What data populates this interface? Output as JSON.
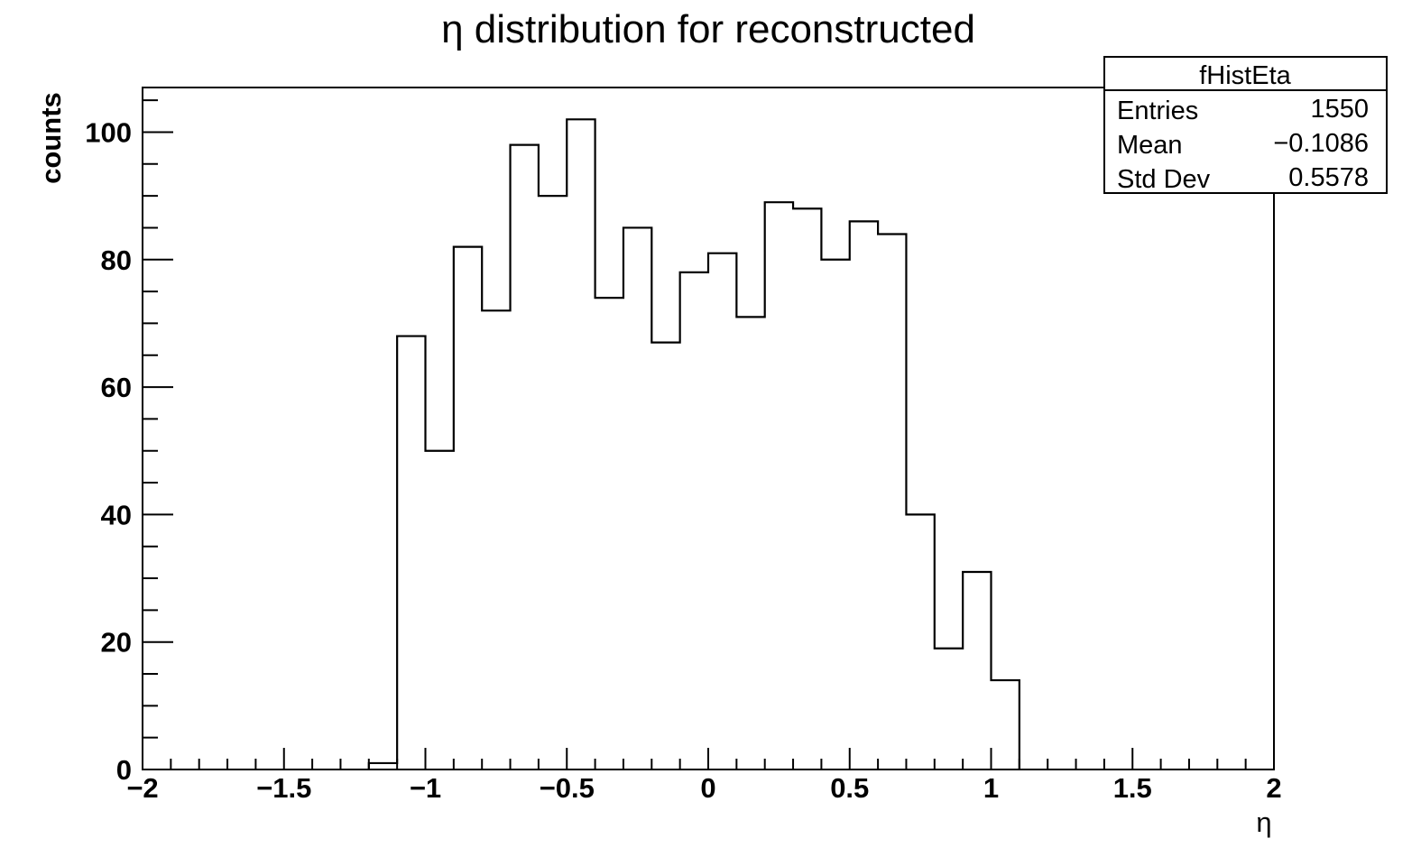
{
  "chart_data": {
    "type": "bar",
    "title": "η distribution for reconstructed",
    "xlabel": "η",
    "ylabel": "counts",
    "xlim": [
      -2,
      2
    ],
    "ylim": [
      0,
      107
    ],
    "bin_width": 0.1,
    "bin_edges_start": [
      -1.2,
      -1.1,
      -1.0,
      -0.9,
      -0.8,
      -0.7,
      -0.6,
      -0.5,
      -0.4,
      -0.3,
      -0.2,
      -0.1,
      0.0,
      0.1,
      0.2,
      0.3,
      0.4,
      0.5,
      0.6,
      0.7,
      0.8,
      0.9,
      1.0
    ],
    "values": [
      1,
      68,
      50,
      82,
      72,
      98,
      90,
      102,
      74,
      85,
      67,
      78,
      81,
      71,
      89,
      88,
      80,
      86,
      84,
      40,
      19,
      31,
      14
    ],
    "x_ticks": [
      {
        "value": -2,
        "label": "−2"
      },
      {
        "value": -1.5,
        "label": "−1.5"
      },
      {
        "value": -1,
        "label": "−1"
      },
      {
        "value": -0.5,
        "label": "−0.5"
      },
      {
        "value": 0,
        "label": "0"
      },
      {
        "value": 0.5,
        "label": "0.5"
      },
      {
        "value": 1,
        "label": "1"
      },
      {
        "value": 1.5,
        "label": "1.5"
      },
      {
        "value": 2,
        "label": "2"
      }
    ],
    "y_ticks": [
      {
        "value": 0,
        "label": "0"
      },
      {
        "value": 20,
        "label": "20"
      },
      {
        "value": 40,
        "label": "40"
      },
      {
        "value": 60,
        "label": "60"
      },
      {
        "value": 80,
        "label": "80"
      },
      {
        "value": 100,
        "label": "100"
      }
    ],
    "grid": false,
    "line_color": "#000000",
    "stats_box": {
      "position": "top-right",
      "name": "fHistEta",
      "rows": [
        {
          "label": "Entries",
          "value": "1550"
        },
        {
          "label": "Mean",
          "value": "−0.1086"
        },
        {
          "label": "Std Dev",
          "value": "0.5578"
        }
      ]
    }
  }
}
